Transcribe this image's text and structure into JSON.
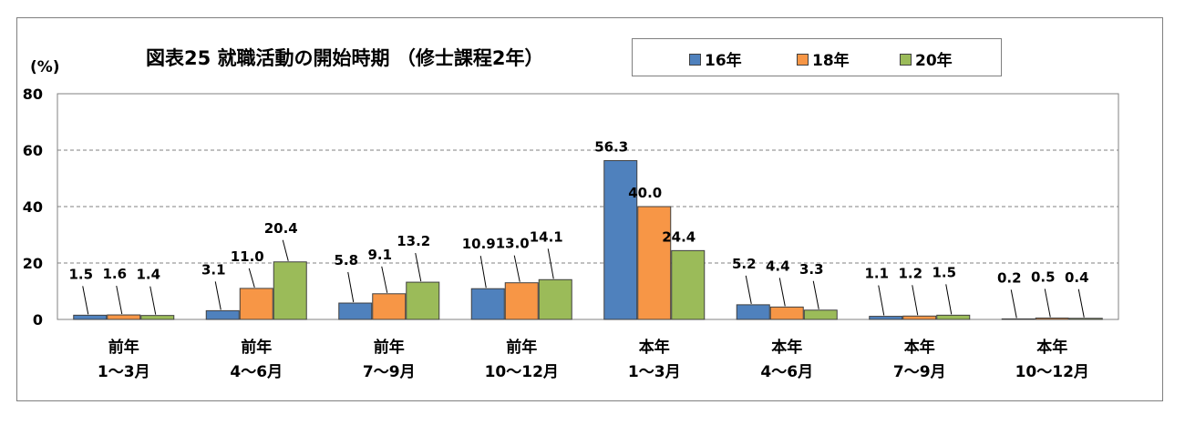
{
  "chart_data": {
    "type": "bar",
    "title": "図表25  就職活動の開始時期 （修士課程2年）",
    "ylabel": "(%)",
    "ylim": [
      0,
      80
    ],
    "yticks": [
      0,
      20,
      40,
      60,
      80
    ],
    "grid": true,
    "legend_position": "top-right",
    "categories": [
      [
        "前年",
        "1～3月"
      ],
      [
        "前年",
        "4～6月"
      ],
      [
        "前年",
        "7～9月"
      ],
      [
        "前年",
        "10～12月"
      ],
      [
        "本年",
        "1～3月"
      ],
      [
        "本年",
        "4～6月"
      ],
      [
        "本年",
        "7～9月"
      ],
      [
        "本年",
        "10～12月"
      ]
    ],
    "series": [
      {
        "name": "16年",
        "color": "#4f81bd",
        "values": [
          1.5,
          3.1,
          5.8,
          10.9,
          56.3,
          5.2,
          1.1,
          0.2
        ]
      },
      {
        "name": "18年",
        "color": "#f79646",
        "values": [
          1.6,
          11.0,
          9.1,
          13.0,
          40.0,
          4.4,
          1.2,
          0.5
        ]
      },
      {
        "name": "20年",
        "color": "#9bbb59",
        "values": [
          1.4,
          20.4,
          13.2,
          14.1,
          24.4,
          3.3,
          1.5,
          0.4
        ]
      }
    ]
  }
}
